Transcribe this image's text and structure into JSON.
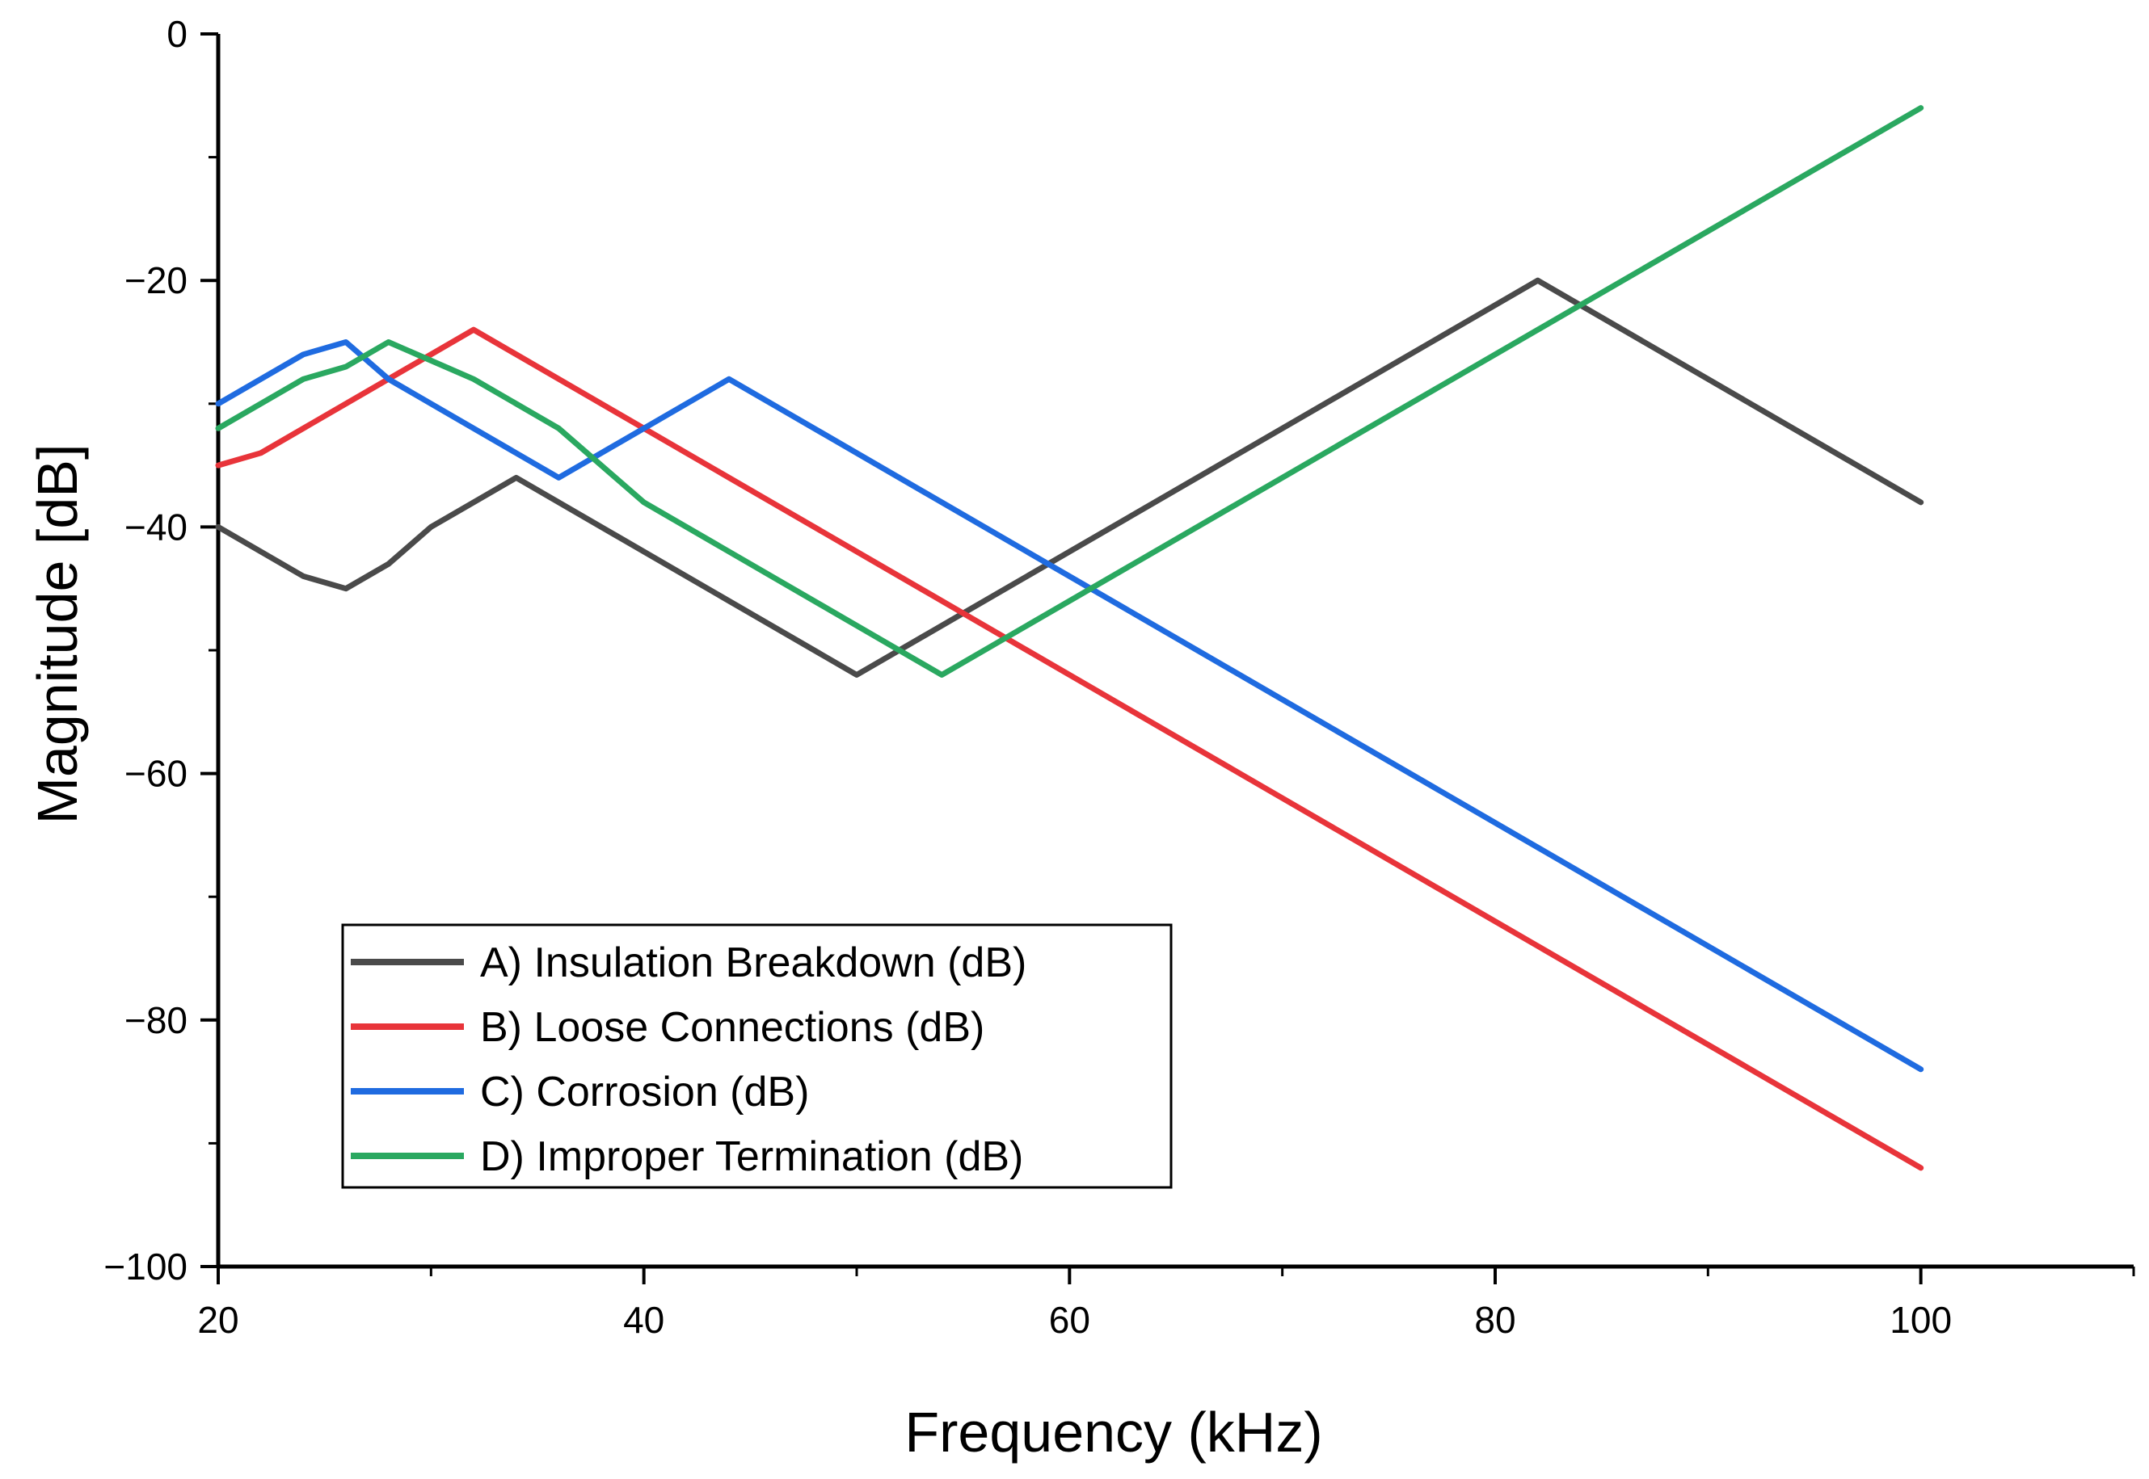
{
  "chart_data": {
    "type": "line",
    "title": "",
    "xlabel": "Frequency (kHz)",
    "ylabel": "Magnitude [dB]",
    "xlim": [
      20,
      110
    ],
    "ylim": [
      -100,
      0
    ],
    "x_major_ticks": [
      20,
      40,
      60,
      80,
      100
    ],
    "x_tick_labels": [
      "20",
      "40",
      "60",
      "80",
      "100"
    ],
    "x_minor_ticks": [
      30,
      50,
      70,
      90,
      110
    ],
    "y_major_ticks": [
      0,
      -20,
      -40,
      -60,
      -80,
      -100
    ],
    "y_tick_labels": [
      "0",
      "−20",
      "−40",
      "−60",
      "−80",
      "−100"
    ],
    "y_minor_ticks": [
      -10,
      -30,
      -50,
      -70,
      -90
    ],
    "grid": false,
    "legend_position": "lower-left",
    "series": [
      {
        "name": "A) Insulation Breakdown (dB)",
        "color": "#4a4a4a",
        "x": [
          20,
          24,
          26,
          28,
          30,
          34,
          50,
          82,
          100
        ],
        "y": [
          -40,
          -44,
          -45,
          -43,
          -40,
          -36,
          -52,
          -20,
          -38
        ]
      },
      {
        "name": "B) Loose Connections (dB)",
        "color": "#e8343a",
        "x": [
          20,
          22,
          32,
          100
        ],
        "y": [
          -35,
          -34,
          -24,
          -92
        ]
      },
      {
        "name": "C) Corrosion (dB)",
        "color": "#1f6be0",
        "x": [
          20,
          24,
          26,
          28,
          36,
          44,
          100
        ],
        "y": [
          -30,
          -26,
          -25,
          -28,
          -36,
          -28,
          -84
        ]
      },
      {
        "name": "D) Improper Termination (dB)",
        "color": "#2aa860",
        "x": [
          20,
          24,
          26,
          28,
          32,
          36,
          40,
          54,
          100
        ],
        "y": [
          -32,
          -28,
          -27,
          -25,
          -28,
          -32,
          -38,
          -52,
          -6
        ]
      }
    ]
  }
}
